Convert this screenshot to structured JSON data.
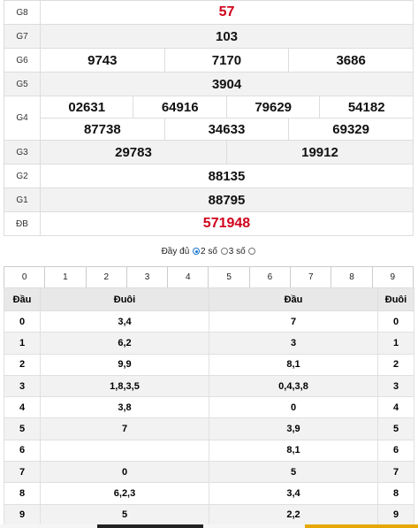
{
  "results": {
    "g8": {
      "label": "G8",
      "value": "57"
    },
    "g7": {
      "label": "G7",
      "value": "103"
    },
    "g6": {
      "label": "G6",
      "values": [
        "9743",
        "7170",
        "3686"
      ]
    },
    "g5": {
      "label": "G5",
      "value": "3904"
    },
    "g4": {
      "label": "G4",
      "row1": [
        "02631",
        "64916",
        "79629",
        "54182"
      ],
      "row2": [
        "87738",
        "34633",
        "69329"
      ]
    },
    "g3": {
      "label": "G3",
      "values": [
        "29783",
        "19912"
      ]
    },
    "g2": {
      "label": "G2",
      "value": "88135"
    },
    "g1": {
      "label": "G1",
      "value": "88795"
    },
    "db": {
      "label": "ĐB",
      "value": "571948"
    },
    "highlight_color": "#d0021b"
  },
  "options": {
    "full_label": "Đầy đủ",
    "two_label": "2 số",
    "three_label": "3 số",
    "selected": "full"
  },
  "digits": [
    "0",
    "1",
    "2",
    "3",
    "4",
    "5",
    "6",
    "7",
    "8",
    "9"
  ],
  "loto": {
    "headers": [
      "Đầu",
      "Đuôi",
      "Đầu",
      "Đuôi"
    ],
    "rows": [
      {
        "head": "0",
        "tails": "3,4",
        "heads": "7",
        "tail": "0"
      },
      {
        "head": "1",
        "tails": "6,2",
        "heads": "3",
        "tail": "1"
      },
      {
        "head": "2",
        "tails": "9,9",
        "heads": "8,1",
        "tail": "2"
      },
      {
        "head": "3",
        "tails": "1,8,3,5",
        "heads": "0,4,3,8",
        "tail": "3"
      },
      {
        "head": "4",
        "tails": "3,8",
        "heads": "0",
        "tail": "4"
      },
      {
        "head": "5",
        "tails": "7",
        "heads": "3,9",
        "tail": "5"
      },
      {
        "head": "6",
        "tails": "",
        "heads": "8,1",
        "tail": "6"
      },
      {
        "head": "7",
        "tails": "0",
        "heads": "5",
        "tail": "7"
      },
      {
        "head": "8",
        "tails": "6,2,3",
        "heads": "3,4",
        "tail": "8"
      },
      {
        "head": "9",
        "tails": "5",
        "heads": "2,2",
        "tail": "9"
      }
    ]
  }
}
